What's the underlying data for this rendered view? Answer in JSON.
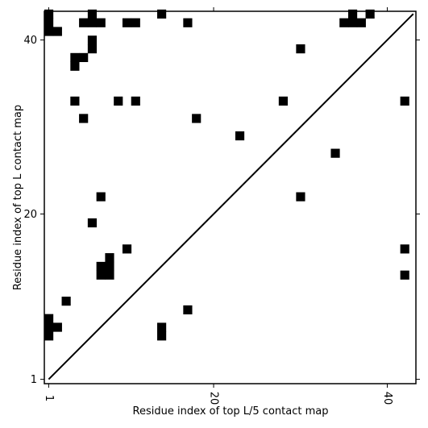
{
  "chart_data": {
    "type": "heatmap",
    "title": "",
    "xlabel": "Residue index of top L/5 contact map",
    "ylabel": "Residue index of top L contact map",
    "xlim": [
      0.5,
      43.3
    ],
    "ylim": [
      0.5,
      43.3
    ],
    "xticks": [
      1,
      20,
      40
    ],
    "xtick_labels": [
      "1",
      "20",
      "40"
    ],
    "yticks": [
      1,
      20,
      40
    ],
    "ytick_labels": [
      "1",
      "20",
      "40"
    ],
    "grid": false,
    "diagonal": [
      [
        1,
        1
      ],
      [
        43,
        43
      ]
    ],
    "cell_color": "#000000",
    "line_color": "#000000",
    "background": "#ffffff",
    "cells": [
      [
        1,
        43
      ],
      [
        1,
        42
      ],
      [
        1,
        41
      ],
      [
        2,
        41
      ],
      [
        6,
        43
      ],
      [
        5,
        42
      ],
      [
        6,
        42
      ],
      [
        7,
        42
      ],
      [
        10,
        42
      ],
      [
        11,
        42
      ],
      [
        14,
        43
      ],
      [
        17,
        42
      ],
      [
        36,
        43
      ],
      [
        35,
        42
      ],
      [
        36,
        42
      ],
      [
        37,
        42
      ],
      [
        38,
        43
      ],
      [
        6,
        40
      ],
      [
        6,
        39
      ],
      [
        30,
        39
      ],
      [
        4,
        38
      ],
      [
        5,
        38
      ],
      [
        4,
        37
      ],
      [
        4,
        33
      ],
      [
        9,
        33
      ],
      [
        11,
        33
      ],
      [
        28,
        33
      ],
      [
        42,
        33
      ],
      [
        5,
        31
      ],
      [
        18,
        31
      ],
      [
        23,
        29
      ],
      [
        34,
        27
      ],
      [
        7,
        22
      ],
      [
        30,
        22
      ],
      [
        6,
        19
      ],
      [
        10,
        16
      ],
      [
        42,
        16
      ],
      [
        8,
        15
      ],
      [
        7,
        14
      ],
      [
        8,
        14
      ],
      [
        7,
        13
      ],
      [
        8,
        13
      ],
      [
        42,
        13
      ],
      [
        3,
        10
      ],
      [
        17,
        9
      ],
      [
        1,
        8
      ],
      [
        1,
        7
      ],
      [
        2,
        7
      ],
      [
        14,
        7
      ],
      [
        1,
        6
      ],
      [
        14,
        6
      ]
    ]
  }
}
